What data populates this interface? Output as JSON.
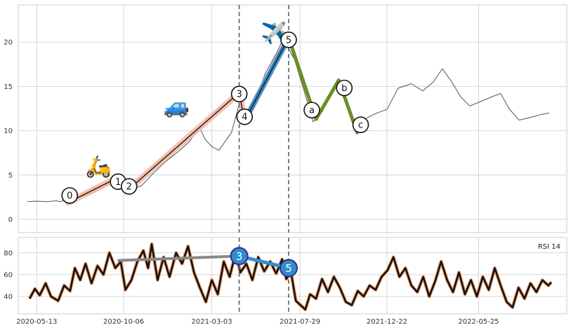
{
  "chart_data": [
    {
      "type": "line",
      "panel": "price",
      "title": "",
      "xlabel": "",
      "ylabel": "",
      "ylim": [
        -1.5,
        24.2
      ],
      "y_ticks": [
        "0",
        "5",
        "10",
        "15",
        "20"
      ],
      "grid": true,
      "series": [
        {
          "values": [
            [
              "2020-04-27",
              2.0
            ],
            [
              "2020-05-13",
              2.05
            ],
            [
              "2020-06-01",
              2.0
            ],
            [
              "2020-06-15",
              2.1
            ],
            [
              "2020-06-20",
              2.0
            ],
            [
              "2020-07-05",
              2.2
            ],
            [
              "2020-07-25",
              2.6
            ],
            [
              "2020-08-15",
              3.0
            ],
            [
              "2020-09-01",
              3.6
            ],
            [
              "2020-09-15",
              4.3
            ],
            [
              "2020-09-25",
              5.0
            ],
            [
              "2020-10-06",
              4.5
            ],
            [
              "2020-10-20",
              3.4
            ],
            [
              "2020-11-05",
              3.8
            ],
            [
              "2020-11-25",
              5.2
            ],
            [
              "2020-12-15",
              6.5
            ],
            [
              "2021-01-05",
              7.6
            ],
            [
              "2021-01-25",
              8.8
            ],
            [
              "2021-02-10",
              10.4
            ],
            [
              "2021-02-20",
              9.0
            ],
            [
              "2021-03-03",
              8.2
            ],
            [
              "2021-03-15",
              7.8
            ],
            [
              "2021-04-05",
              9.8
            ],
            [
              "2021-04-20",
              13.5
            ],
            [
              "2021-04-28",
              11.0
            ],
            [
              "2021-05-15",
              13.5
            ],
            [
              "2021-06-01",
              16.5
            ],
            [
              "2021-06-20",
              18.8
            ],
            [
              "2021-07-01",
              20.4
            ],
            [
              "2021-07-20",
              18.0
            ],
            [
              "2021-08-05",
              14.5
            ],
            [
              "2021-08-20",
              11.0
            ],
            [
              "2021-09-05",
              12.2
            ],
            [
              "2021-09-20",
              14.5
            ],
            [
              "2021-10-01",
              15.7
            ],
            [
              "2021-10-15",
              13.5
            ],
            [
              "2021-10-25",
              11.5
            ],
            [
              "2021-11-05",
              10.8
            ],
            [
              "2021-11-20",
              11.5
            ],
            [
              "2021-12-05",
              12.0
            ],
            [
              "2021-12-22",
              12.4
            ],
            [
              "2022-01-10",
              14.8
            ],
            [
              "2022-02-01",
              15.3
            ],
            [
              "2022-02-20",
              14.5
            ],
            [
              "2022-03-10",
              15.5
            ],
            [
              "2022-03-25",
              17.0
            ],
            [
              "2022-04-10",
              15.5
            ],
            [
              "2022-04-25",
              13.8
            ],
            [
              "2022-05-10",
              12.8
            ],
            [
              "2022-05-25",
              13.2
            ],
            [
              "2022-06-15",
              13.8
            ],
            [
              "2022-07-01",
              14.2
            ],
            [
              "2022-07-15",
              12.5
            ],
            [
              "2022-08-01",
              11.2
            ],
            [
              "2022-08-20",
              11.5
            ],
            [
              "2022-09-05",
              11.8
            ],
            [
              "2022-09-20",
              12.0
            ]
          ],
          "color": "#4a5468"
        }
      ],
      "annotations": {
        "impulse_points": [
          {
            "label": "0",
            "x": "2020-07-05",
            "y": 1.9
          },
          {
            "label": "1",
            "x": "2020-09-29",
            "y": 4.8
          },
          {
            "label": "2",
            "x": "2020-10-15",
            "y": 3.4
          },
          {
            "label": "3",
            "x": "2021-04-18",
            "y": 14.3
          },
          {
            "label": "4",
            "x": "2021-04-27",
            "y": 11.1
          },
          {
            "label": "5",
            "x": "2021-07-10",
            "y": 20.5
          }
        ],
        "correction_points": [
          {
            "label": "5",
            "x": "2021-07-10",
            "y": 20.5
          },
          {
            "label": "a",
            "x": "2021-08-25",
            "y": 11.3
          },
          {
            "label": "b",
            "x": "2021-10-02",
            "y": 15.7
          },
          {
            "label": "c",
            "x": "2021-11-02",
            "y": 9.8
          }
        ],
        "vertical_lines": [
          "2021-04-18",
          "2021-07-10"
        ],
        "icons": [
          {
            "emoji": "🛵",
            "name": "scooter-icon",
            "x": "2020-08-25",
            "y": 5.2
          },
          {
            "emoji": "🚙",
            "name": "car-icon",
            "x": "2021-01-03",
            "y": 12.0
          },
          {
            "emoji": "✈️",
            "name": "airplane-icon",
            "x": "2021-06-15",
            "y": 20.2
          }
        ],
        "colors": {
          "impulse_halo": "#f4b9a4",
          "wave_3_highlight": "#2f8dcf",
          "correction": "#6b8e23"
        }
      }
    },
    {
      "type": "line",
      "panel": "rsi",
      "title": "RSI 14",
      "xlabel": "",
      "ylabel": "",
      "ylim": [
        24,
        94
      ],
      "y_ticks": [
        "40",
        "60",
        "80"
      ],
      "x_ticks": [
        "2020-05-13",
        "2020-10-06",
        "2021-03-03",
        "2021-07-29",
        "2021-12-22",
        "2022-05-25"
      ],
      "grid": true,
      "series": [
        {
          "values": [
            [
              "2020-05-01",
              38
            ],
            [
              "2020-05-10",
              47
            ],
            [
              "2020-05-18",
              41
            ],
            [
              "2020-05-28",
              52
            ],
            [
              "2020-06-06",
              40
            ],
            [
              "2020-06-18",
              36
            ],
            [
              "2020-06-28",
              50
            ],
            [
              "2020-07-08",
              45
            ],
            [
              "2020-07-16",
              66
            ],
            [
              "2020-07-25",
              55
            ],
            [
              "2020-08-03",
              70
            ],
            [
              "2020-08-13",
              52
            ],
            [
              "2020-08-23",
              68
            ],
            [
              "2020-09-02",
              60
            ],
            [
              "2020-09-12",
              80
            ],
            [
              "2020-09-22",
              66
            ],
            [
              "2020-10-01",
              72
            ],
            [
              "2020-10-09",
              46
            ],
            [
              "2020-10-19",
              55
            ],
            [
              "2020-10-29",
              72
            ],
            [
              "2020-11-08",
              82
            ],
            [
              "2020-11-16",
              66
            ],
            [
              "2020-11-22",
              88
            ],
            [
              "2020-12-02",
              55
            ],
            [
              "2020-12-12",
              76
            ],
            [
              "2020-12-22",
              58
            ],
            [
              "2021-01-02",
              80
            ],
            [
              "2021-01-12",
              70
            ],
            [
              "2021-01-22",
              86
            ],
            [
              "2021-02-01",
              62
            ],
            [
              "2021-02-11",
              48
            ],
            [
              "2021-02-21",
              35
            ],
            [
              "2021-03-03",
              55
            ],
            [
              "2021-03-13",
              42
            ],
            [
              "2021-03-23",
              72
            ],
            [
              "2021-04-02",
              58
            ],
            [
              "2021-04-12",
              80
            ],
            [
              "2021-04-20",
              62
            ],
            [
              "2021-04-30",
              70
            ],
            [
              "2021-05-10",
              55
            ],
            [
              "2021-05-20",
              76
            ],
            [
              "2021-05-30",
              63
            ],
            [
              "2021-06-09",
              72
            ],
            [
              "2021-06-19",
              61
            ],
            [
              "2021-06-29",
              74
            ],
            [
              "2021-07-06",
              56
            ],
            [
              "2021-07-14",
              62
            ],
            [
              "2021-07-22",
              36
            ],
            [
              "2021-07-30",
              32
            ],
            [
              "2021-08-07",
              28
            ],
            [
              "2021-08-15",
              42
            ],
            [
              "2021-08-25",
              38
            ],
            [
              "2021-09-04",
              56
            ],
            [
              "2021-09-14",
              44
            ],
            [
              "2021-09-24",
              58
            ],
            [
              "2021-10-04",
              48
            ],
            [
              "2021-10-14",
              35
            ],
            [
              "2021-10-24",
              32
            ],
            [
              "2021-11-03",
              45
            ],
            [
              "2021-11-13",
              40
            ],
            [
              "2021-11-23",
              50
            ],
            [
              "2021-12-03",
              46
            ],
            [
              "2021-12-13",
              58
            ],
            [
              "2021-12-23",
              64
            ],
            [
              "2022-01-02",
              76
            ],
            [
              "2022-01-12",
              58
            ],
            [
              "2022-01-22",
              66
            ],
            [
              "2022-02-01",
              50
            ],
            [
              "2022-02-11",
              44
            ],
            [
              "2022-02-21",
              58
            ],
            [
              "2022-03-03",
              40
            ],
            [
              "2022-03-13",
              54
            ],
            [
              "2022-03-23",
              72
            ],
            [
              "2022-04-02",
              55
            ],
            [
              "2022-04-12",
              44
            ],
            [
              "2022-04-22",
              62
            ],
            [
              "2022-05-02",
              42
            ],
            [
              "2022-05-12",
              55
            ],
            [
              "2022-05-22",
              40
            ],
            [
              "2022-06-01",
              58
            ],
            [
              "2022-06-11",
              46
            ],
            [
              "2022-06-21",
              66
            ],
            [
              "2022-07-01",
              50
            ],
            [
              "2022-07-11",
              35
            ],
            [
              "2022-07-21",
              30
            ],
            [
              "2022-07-31",
              48
            ],
            [
              "2022-08-10",
              38
            ],
            [
              "2022-08-20",
              52
            ],
            [
              "2022-08-30",
              44
            ],
            [
              "2022-09-09",
              55
            ],
            [
              "2022-09-19",
              50
            ],
            [
              "2022-09-24",
              53
            ]
          ],
          "color": "#111111",
          "halo_color": "#f0a070"
        }
      ],
      "annotations": {
        "wave_markers": [
          {
            "label": "3",
            "x": "2021-04-18",
            "y": 77
          },
          {
            "label": "5",
            "x": "2021-07-10",
            "y": 66
          }
        ],
        "trend_line_color": "#888888",
        "marker_fill": "#2f8dcf",
        "marker_edge": "#3a2a8a"
      }
    }
  ]
}
